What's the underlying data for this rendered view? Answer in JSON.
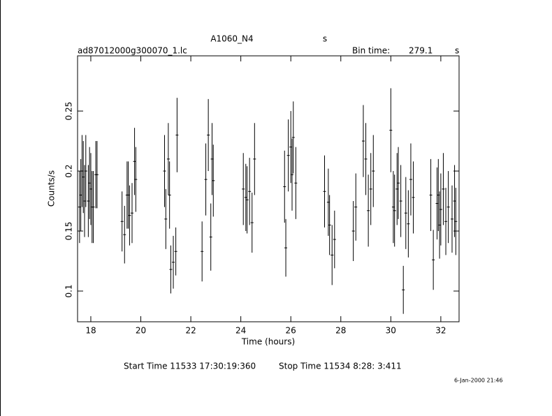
{
  "chart_data": {
    "type": "scatter",
    "title": "A1060_N4",
    "title_unit": "s",
    "subtitle": "ad87012000g300070_1.lc",
    "bin_time_label": "Bin time:",
    "bin_time": "279.1",
    "bin_time_unit": "s",
    "xlabel": "Time (hours)",
    "ylabel": "Counts/s",
    "start_time": "Start Time 11533 17:30:19:360",
    "stop_time": "Stop Time 11534  8:28: 3:411",
    "date_stamp": "6-Jan-2000 21:46",
    "color": "#000000",
    "x": [
      17.55,
      17.6,
      17.65,
      17.7,
      17.75,
      17.8,
      17.9,
      17.95,
      18.0,
      18.05,
      18.1,
      18.2,
      18.25,
      19.25,
      19.35,
      19.45,
      19.5,
      19.55,
      19.65,
      19.75,
      19.8,
      20.95,
      21.0,
      21.1,
      21.15,
      21.2,
      21.3,
      21.4,
      21.45,
      22.45,
      22.6,
      22.7,
      22.8,
      22.85,
      22.9,
      24.1,
      24.2,
      24.25,
      24.35,
      24.45,
      24.55,
      25.75,
      25.8,
      25.9,
      26.0,
      26.05,
      26.1,
      26.2,
      27.35,
      27.5,
      27.55,
      27.65,
      27.75,
      28.5,
      28.6,
      28.9,
      29.0,
      29.1,
      29.2,
      29.3,
      30.0,
      30.1,
      30.15,
      30.25,
      30.3,
      30.4,
      30.5,
      30.6,
      30.7,
      30.8,
      30.9,
      31.6,
      31.7,
      31.85,
      31.9,
      31.95,
      32.0,
      32.1,
      32.2,
      32.3,
      32.45,
      32.55,
      32.6
    ],
    "values": [
      0.17,
      0.18,
      0.2,
      0.195,
      0.175,
      0.2,
      0.175,
      0.19,
      0.185,
      0.17,
      0.17,
      0.197,
      0.197,
      0.158,
      0.147,
      0.18,
      0.18,
      0.163,
      0.165,
      0.208,
      0.193,
      0.2,
      0.16,
      0.21,
      0.18,
      0.118,
      0.124,
      0.133,
      0.23,
      0.133,
      0.193,
      0.23,
      0.145,
      0.21,
      0.192,
      0.185,
      0.178,
      0.176,
      0.183,
      0.157,
      0.21,
      0.187,
      0.136,
      0.213,
      0.22,
      0.197,
      0.228,
      0.19,
      0.183,
      0.174,
      0.155,
      0.13,
      0.143,
      0.15,
      0.17,
      0.225,
      0.21,
      0.167,
      0.185,
      0.2,
      0.234,
      0.17,
      0.167,
      0.185,
      0.19,
      0.175,
      0.101,
      0.165,
      0.156,
      0.193,
      0.178,
      0.18,
      0.126,
      0.173,
      0.18,
      0.155,
      0.168,
      0.185,
      0.158,
      0.17,
      0.16,
      0.175,
      0.158
    ],
    "errors": [
      0.03,
      0.03,
      0.03,
      0.03,
      0.03,
      0.03,
      0.03,
      0.03,
      0.03,
      0.03,
      0.03,
      0.028,
      0.028,
      0.025,
      0.024,
      0.028,
      0.028,
      0.025,
      0.025,
      0.028,
      0.027,
      0.03,
      0.025,
      0.03,
      0.028,
      0.02,
      0.022,
      0.02,
      0.031,
      0.025,
      0.03,
      0.03,
      0.028,
      0.03,
      0.03,
      0.03,
      0.028,
      0.028,
      0.028,
      0.025,
      0.03,
      0.03,
      0.024,
      0.03,
      0.03,
      0.03,
      0.03,
      0.03,
      0.03,
      0.028,
      0.025,
      0.025,
      0.024,
      0.025,
      0.028,
      0.03,
      0.03,
      0.03,
      0.03,
      0.03,
      0.035,
      0.03,
      0.03,
      0.03,
      0.03,
      0.03,
      0.02,
      0.03,
      0.028,
      0.03,
      0.03,
      0.03,
      0.025,
      0.03,
      0.03,
      0.028,
      0.03,
      0.03,
      0.028,
      0.03,
      0.028,
      0.03,
      0.028
    ],
    "xlim": [
      17.47,
      32.73
    ],
    "ylim": [
      0.0744,
      0.296
    ],
    "xticks": [
      18,
      20,
      22,
      24,
      26,
      28,
      30,
      32
    ],
    "yticks": [
      0.1,
      0.15,
      0.2,
      0.25
    ]
  }
}
